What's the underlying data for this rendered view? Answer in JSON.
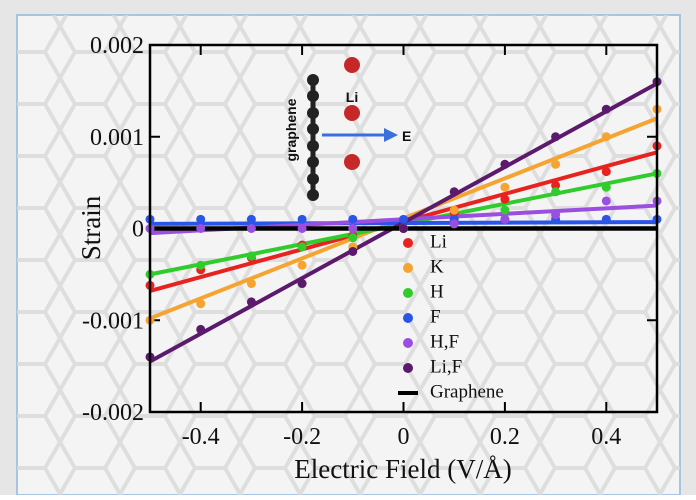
{
  "chart_data": {
    "type": "scatter",
    "xlabel": "Electric Field (V/Å)",
    "ylabel": "Strain",
    "annotations": [
      "graphene",
      "Li",
      "E"
    ],
    "xlim": [
      -0.5,
      0.5
    ],
    "ylim": [
      -0.002,
      0.002
    ],
    "xticks": [
      -0.4,
      -0.2,
      0,
      0.2,
      0.4
    ],
    "yticks": [
      0.002,
      0.001,
      0,
      -0.001,
      -0.002
    ],
    "x": [
      -0.5,
      -0.4,
      -0.3,
      -0.2,
      -0.1,
      0,
      0.1,
      0.2,
      0.3,
      0.4,
      0.5
    ],
    "series": [
      {
        "name": "Li",
        "color": "#e8221f",
        "values": [
          -0.00062,
          -0.00045,
          -0.00032,
          -0.00018,
          -8e-05,
          0,
          0.00017,
          0.00032,
          0.00047,
          0.00062,
          0.0009
        ],
        "fit": [
          -0.00068,
          0.00083
        ]
      },
      {
        "name": "K",
        "color": "#f5a431",
        "values": [
          -0.001,
          -0.00082,
          -0.0006,
          -0.0004,
          -0.0002,
          0,
          0.0002,
          0.00045,
          0.0007,
          0.001,
          0.0013
        ],
        "fit": [
          -0.00098,
          0.0012
        ]
      },
      {
        "name": "H",
        "color": "#2fcc2c",
        "values": [
          -0.0005,
          -0.0004,
          -0.0003,
          -0.0002,
          -0.0001,
          0,
          0.0001,
          0.0002,
          0.0004,
          0.00045,
          0.0006
        ],
        "fit": [
          -0.0005,
          0.0006
        ]
      },
      {
        "name": "F",
        "color": "#2a55e8",
        "values": [
          0.0001,
          0.0001,
          0.0001,
          0.0001,
          0.0001,
          0.0001,
          0.0001,
          0.0001,
          0.0001,
          0.0001,
          0.0001
        ],
        "fit": [
          5e-05,
          7e-05
        ]
      },
      {
        "name": "H,F",
        "color": "#9a4fe0",
        "values": [
          0,
          0,
          0,
          0,
          0,
          0,
          5e-05,
          0.0001,
          0.00015,
          0.0003,
          0.0003
        ],
        "fit": [
          -5e-05,
          0.00025
        ]
      },
      {
        "name": "Li,F",
        "color": "#5b1a6b",
        "values": [
          -0.0014,
          -0.0011,
          -0.0008,
          -0.0006,
          -0.00025,
          0,
          0.0004,
          0.0007,
          0.001,
          0.0013,
          0.0016
        ],
        "fit": [
          -0.00145,
          0.00158
        ]
      },
      {
        "name": "Graphene",
        "color": "#000000",
        "fit": [
          0,
          0
        ]
      }
    ]
  }
}
